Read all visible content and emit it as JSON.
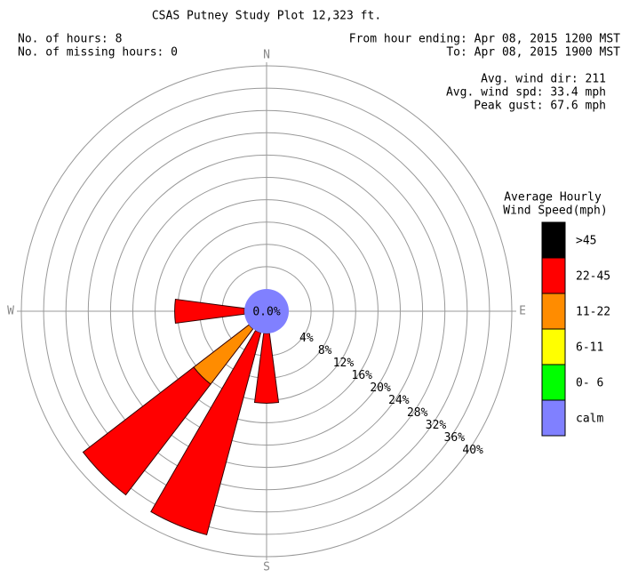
{
  "chart_data": {
    "type": "windrose",
    "title": "CSAS Putney Study Plot 12,323 ft.",
    "info_left": [
      "No. of hours: 8",
      "No. of missing hours: 0"
    ],
    "info_right": [
      "From hour ending: Apr 08, 2015 1200 MST",
      "To: Apr 08, 2015 1900 MST"
    ],
    "stats": [
      "Avg. wind dir: 211",
      "Avg. wind spd: 33.4 mph",
      "Peak gust: 67.6 mph"
    ],
    "legend_title": [
      "Average Hourly",
      "Wind Speed(mph)"
    ],
    "categories": [
      "N",
      null,
      null,
      null,
      "E",
      null,
      null,
      null,
      "S",
      null,
      null,
      null,
      "W",
      null,
      null,
      null
    ],
    "calm": {
      "name": "calm",
      "color": "#8080ff",
      "value": 0.0,
      "value_label": "0.0%"
    },
    "series": [
      {
        "name": "0- 6",
        "color": "#00ff00",
        "values": [
          0,
          0,
          0,
          0,
          0,
          0,
          0,
          0,
          0,
          0,
          0,
          0,
          0,
          0,
          0,
          0
        ]
      },
      {
        "name": "6-11",
        "color": "#ffff00",
        "values": [
          0,
          0,
          0,
          0,
          0,
          0,
          0,
          0,
          0,
          0,
          0,
          0,
          0,
          0,
          0,
          0
        ]
      },
      {
        "name": "11-22",
        "color": "#ff8c00",
        "values": [
          0,
          0,
          0,
          0,
          0,
          0,
          0,
          0,
          0,
          0,
          12.5,
          0,
          0,
          0,
          0,
          0
        ]
      },
      {
        "name": "22-45",
        "color": "#ff0000",
        "values": [
          0,
          0,
          0,
          0,
          0,
          0,
          0,
          0,
          12.5,
          37.5,
          25,
          0,
          12.5,
          0,
          0,
          0
        ]
      },
      {
        "name": ">45",
        "color": "#000000",
        "values": [
          0,
          0,
          0,
          0,
          0,
          0,
          0,
          0,
          0,
          0,
          0,
          0,
          0,
          0,
          0,
          0
        ]
      }
    ],
    "rlim": [
      0,
      40
    ],
    "rticks": [
      {
        "value": 4,
        "label": "4%"
      },
      {
        "value": 8,
        "label": "8%"
      },
      {
        "value": 12,
        "label": "12%"
      },
      {
        "value": 16,
        "label": "16%"
      },
      {
        "value": 20,
        "label": "20%"
      },
      {
        "value": 24,
        "label": "24%"
      },
      {
        "value": 28,
        "label": "28%"
      },
      {
        "value": 32,
        "label": "32%"
      },
      {
        "value": 36,
        "label": "36%"
      },
      {
        "value": 40,
        "label": "40%"
      }
    ]
  }
}
